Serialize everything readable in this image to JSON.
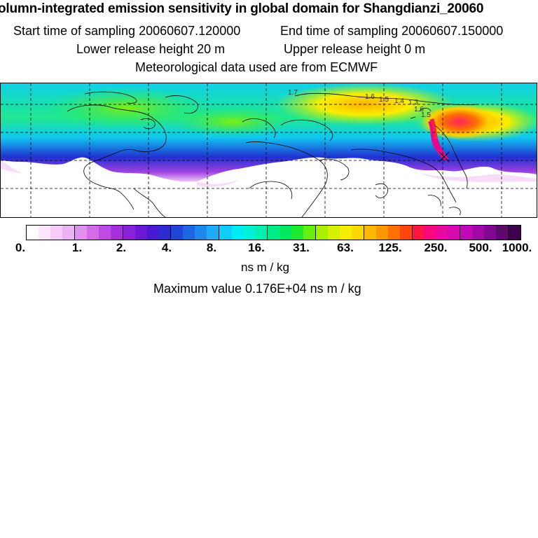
{
  "header": {
    "title": "olumn-integrated emission sensitivity in global domain for Shangdianzi_20060",
    "start_time": "Start time of sampling 20060607.120000",
    "end_time": "End time of sampling 20060607.150000",
    "lower_release": "Lower release height   20 m",
    "upper_release": "Upper release height    0 m",
    "meteo": "Meteorological data used are from ECMWF"
  },
  "map": {
    "contour_labels": [
      "1.7",
      "1.6",
      "1.5",
      "1.4",
      "1.3",
      "1.6",
      "1.5"
    ],
    "features": [
      "gridlines-dashed",
      "coastlines",
      "emission-sensitivity-field",
      "receptor-site"
    ]
  },
  "colorbar": {
    "tick_labels": [
      "0.",
      "1.",
      "2.",
      "4.",
      "8.",
      "16.",
      "31.",
      "63.",
      "125.",
      "250.",
      "500.",
      "1000."
    ],
    "colors": [
      "#ffffff",
      "#fbe6fb",
      "#f5ccf7",
      "#edb2f3",
      "#e290ef",
      "#d46ce9",
      "#c04ae3",
      "#a630dd",
      "#8a20d8",
      "#6a18d4",
      "#4a1ad2",
      "#2c2ad0",
      "#2046d8",
      "#1e66e2",
      "#1e88ec",
      "#1eaaf4",
      "#10ccf8",
      "#00eaf6",
      "#00f0d8",
      "#00f0b0",
      "#00ec88",
      "#00e860",
      "#20ea30",
      "#66ee10",
      "#a8f000",
      "#d6f000",
      "#f6ee00",
      "#ffd800",
      "#ffb800",
      "#ff9800",
      "#ff7000",
      "#ff4410",
      "#ff1640",
      "#f8087c",
      "#e808a0",
      "#d808b0",
      "#c008b8",
      "#a008a8",
      "#800890",
      "#600870",
      "#400050"
    ],
    "units": "ns m / kg",
    "max_value": "Maximum value  0.176E+04 ns m / kg"
  }
}
